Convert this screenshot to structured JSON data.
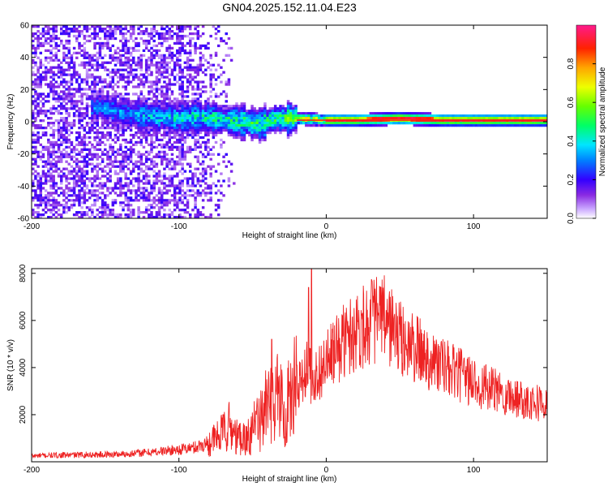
{
  "title": "GN04.2025.152.11.04.E23",
  "chart_data": [
    {
      "type": "heatmap",
      "xlabel": "Height of straight line (km)",
      "ylabel": "Frequency (Hz)",
      "xlim": [
        -200,
        150
      ],
      "ylim": [
        -60,
        60
      ],
      "x_ticks": [
        -200,
        -100,
        0,
        100
      ],
      "y_ticks": [
        -60,
        -40,
        -20,
        0,
        20,
        40,
        60
      ],
      "colorbar": {
        "label": "Normalized spectral amplitude",
        "range": [
          0,
          1
        ],
        "ticks": [
          0,
          0.2,
          0.4,
          0.6,
          0.8
        ],
        "tick_labels": [
          "0.0",
          "0.2",
          "0.4",
          "0.6",
          "0.8"
        ],
        "colors": [
          "#ffffff",
          "#c9a6ff",
          "#8a2be2",
          "#5500ff",
          "#0040ff",
          "#00ccff",
          "#00ff80",
          "#33ff00",
          "#ccff00",
          "#ffcc00",
          "#ff6600",
          "#ff0000",
          "#ff1a8c"
        ]
      },
      "ridge": {
        "x": [
          -155,
          -140,
          -120,
          -100,
          -85,
          -70,
          -55,
          -45,
          -35,
          -20,
          0,
          20,
          50,
          80,
          110,
          150
        ],
        "y": [
          9,
          6,
          3,
          2,
          3,
          1,
          0,
          -2,
          2,
          2,
          1,
          1,
          2,
          1,
          1,
          1
        ]
      },
      "noise_region": {
        "x": [
          -200,
          -60
        ],
        "y": [
          -60,
          60
        ]
      }
    },
    {
      "type": "line",
      "xlabel": "Height of straight line (km)",
      "ylabel": "SNR (10 * v/v)",
      "xlim": [
        -200,
        150
      ],
      "ylim": [
        0,
        8200
      ],
      "x_ticks": [
        -200,
        -100,
        0,
        100
      ],
      "y_ticks": [
        2000,
        4000,
        6000,
        8000
      ],
      "line_color": "#ee2222",
      "series": [
        {
          "x": [
            -200,
            -180,
            -160,
            -140,
            -120,
            -100,
            -90,
            -80,
            -75,
            -70,
            -66,
            -60,
            -55,
            -50,
            -45,
            -40,
            -35,
            -30,
            -25,
            -20,
            -15,
            -12,
            -10,
            -5,
            0,
            5,
            10,
            15,
            20,
            25,
            30,
            35,
            40,
            45,
            50,
            60,
            70,
            80,
            90,
            100,
            110,
            120,
            130,
            140,
            150
          ],
          "y": [
            250,
            280,
            300,
            320,
            400,
            520,
            600,
            800,
            1000,
            1200,
            1500,
            1000,
            1200,
            1400,
            1800,
            2400,
            2800,
            2600,
            2900,
            3100,
            3600,
            4200,
            3400,
            3800,
            4200,
            4600,
            5000,
            5300,
            5600,
            5800,
            6000,
            6100,
            6000,
            5700,
            5200,
            4800,
            4400,
            4000,
            3700,
            3400,
            3100,
            2900,
            2700,
            2600,
            2400
          ]
        }
      ],
      "spikes": {
        "x": [
          -70,
          -37,
          -34,
          -25,
          -20,
          -12,
          -10
        ],
        "y": [
          2000,
          5200,
          3000,
          3400,
          4100,
          7400,
          8200
        ]
      }
    }
  ]
}
